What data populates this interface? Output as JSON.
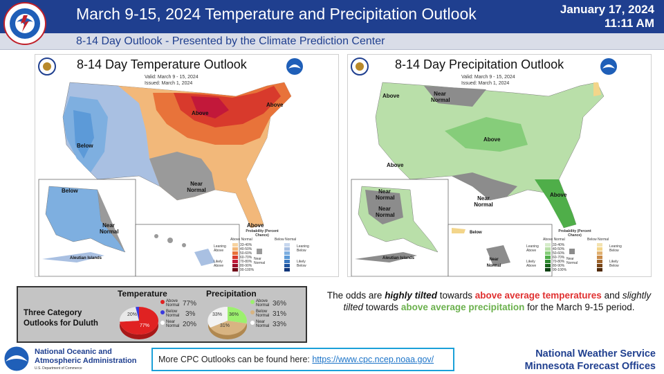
{
  "header": {
    "title": "March 9-15, 2024 Temperature and Precipitation Outlook",
    "date": "January 17, 2024",
    "time": "11:11 AM",
    "subtitle": "8-14 Day Outlook - Presented by the Climate Prediction Center",
    "bg_color": "#1f3f8f"
  },
  "temp_map": {
    "title": "8-14 Day Temperature Outlook",
    "valid": "Valid:  March 9 - 15, 2024",
    "issued": "Issued:  March 1, 2024",
    "labels": {
      "above_1": "Above",
      "above_2": "Above",
      "above_3": "Above",
      "below_1": "Below",
      "below_2": "Below",
      "near_normal_1": "Near Normal",
      "near_normal_2": "Near Normal",
      "aleutian": "Aleutian Islands"
    },
    "legend": {
      "title": "Probability (Percent Chance)",
      "above_normal": "Above Normal",
      "below_normal": "Below Normal",
      "leaning_above": "Leaning Above",
      "likely_above": "Likely Above",
      "leaning_below": "Leaning Below",
      "likely_below": "Likely Below",
      "near_normal": "Near Normal",
      "ranges": [
        "33-40%",
        "40-50%",
        "50-60%",
        "60-70%",
        "70-80%",
        "80-90%",
        "90-100%"
      ]
    }
  },
  "precip_map": {
    "title": "8-14 Day Precipitation Outlook",
    "valid": "Valid:  March 9 - 15, 2024",
    "issued": "Issued:  March 1, 2024",
    "labels": {
      "above_1": "Above",
      "above_2": "Above",
      "above_3": "Above",
      "above_4": "Above",
      "below_1": "Below",
      "near_normal_1": "Near Normal",
      "near_normal_2": "Near Normal",
      "near_normal_3": "Near Normal",
      "near_normal_4": "Near Normal",
      "near_normal_5": "Near Normal",
      "aleutian": "Aleutian Islands"
    },
    "legend": {
      "title": "Probability (Percent Chance)",
      "above_normal": "Above Normal",
      "below_normal": "Below Normal",
      "leaning_above": "Leaning Above",
      "likely_above": "Likely Above",
      "leaning_below": "Leaning Below",
      "likely_below": "Likely Below",
      "near_normal": "Near Normal",
      "ranges": [
        "33-40%",
        "40-50%",
        "50-60%",
        "60-70%",
        "70-80%",
        "80-90%",
        "90-100%"
      ]
    }
  },
  "duluth_panel": {
    "description_line1": "Three Category",
    "description_line2": "Outlooks for Duluth",
    "temperature": {
      "title": "Temperature",
      "above_label": "Above Normal",
      "below_label": "Below Normal",
      "near_label": "Near Normal",
      "above_pct": "77%",
      "below_pct": "3%",
      "near_pct": "20%",
      "above_value": 77,
      "below_value": 3,
      "near_value": 20,
      "slice_label_above": "77%",
      "slice_label_near": "20%"
    },
    "precipitation": {
      "title": "Precipitation",
      "above_label": "Above Normal",
      "below_label": "Below Normal",
      "near_label": "Near Normal",
      "above_pct": "36%",
      "below_pct": "31%",
      "near_pct": "33%",
      "above_value": 36,
      "below_value": 31,
      "near_value": 33,
      "slice_label_above": "36%",
      "slice_label_below": "31%",
      "slice_label_near": "33%"
    }
  },
  "summary": {
    "part1": "The odds are ",
    "highly_tilted": "highly tilted",
    "part2": " towards ",
    "above_temps": "above average temperatures",
    "part3": " and ",
    "slightly_tilted": "slightly tilted",
    "part4": " towards ",
    "above_precip": "above average precipitation",
    "part5": " for the March 9-15 period."
  },
  "footer": {
    "link_text": "More CPC Outlooks can be found here:",
    "link_url": "https://www.cpc.ncep.noaa.gov/",
    "noaa_line1": "National Oceanic and",
    "noaa_line2": "Atmospheric Administration",
    "noaa_dept": "U.S. Department of Commerce",
    "nws_line1": "National  Weather  Service",
    "nws_line2": "Minnesota  Forecast  Offices"
  }
}
